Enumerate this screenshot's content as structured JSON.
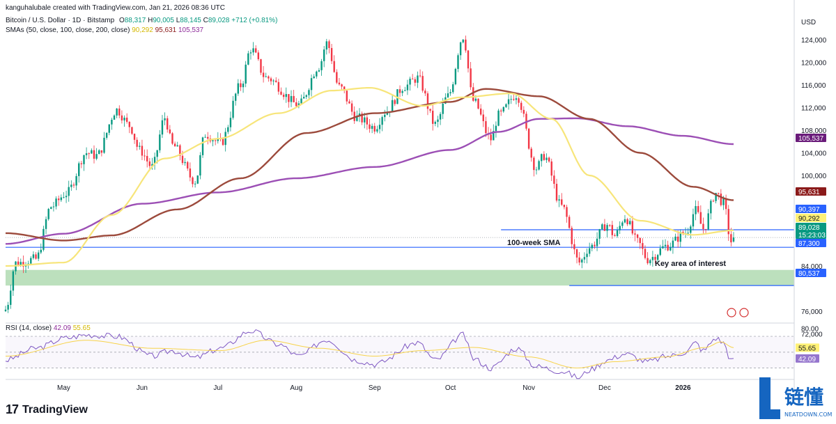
{
  "header": {
    "credit": "kanguhalubale created with TradingView.com, Jan 21, 2026 08:36 UTC",
    "symbol": "Bitcoin / U.S. Dollar · 1D · Bitstamp",
    "ohlc": {
      "o_label": "O",
      "o": "88,317",
      "h_label": "H",
      "h": "90,005",
      "l_label": "L",
      "l": "88,145",
      "c_label": "C",
      "c": "89,028",
      "change": "+712 (+0.81%)"
    },
    "sma_label": "SMAs (50, close, 100, close, 200, close)",
    "sma_values": {
      "sma50": "90,292",
      "sma100": "95,631",
      "sma200": "105,537"
    },
    "rsi_label": "RSI (14, close)",
    "rsi_values": {
      "rsi": "42.09",
      "rsi_ma": "55.65"
    }
  },
  "price_axis": {
    "currency": "USD",
    "ticks": [
      "124,000",
      "120,000",
      "116,000",
      "112,000",
      "108,000",
      "104,000",
      "100,000",
      "84,000",
      "76,000",
      "72,000"
    ]
  },
  "rsi_axis": {
    "ticks": [
      "80.00"
    ]
  },
  "time_axis": {
    "labels": [
      "May",
      "Jun",
      "Jul",
      "Aug",
      "Sep",
      "Oct",
      "Nov",
      "Dec",
      "2026"
    ]
  },
  "price_badges": [
    {
      "value": "105,537",
      "color": "#6a1b7a"
    },
    {
      "value": "95,631",
      "color": "#8b1a1a"
    },
    {
      "value": "90,397",
      "color": "#2962ff"
    },
    {
      "value": "90,292",
      "color": "#fff176"
    },
    {
      "value": "89,028",
      "color": "#089981"
    },
    {
      "value": "15:23:03",
      "color": "#089981"
    },
    {
      "value": "87,300",
      "color": "#2962ff"
    },
    {
      "value": "80,537",
      "color": "#2962ff"
    }
  ],
  "rsi_badges": [
    {
      "value": "55.65",
      "color": "#fff176"
    },
    {
      "value": "42.09",
      "color": "#9575cd"
    }
  ],
  "annotations": {
    "sma100w": "100-week  SMA",
    "key_area": "Key area of interest"
  },
  "branding": {
    "tv_mark": "17",
    "tv_name": "TradingView",
    "wm_cn": "链懂",
    "wm_en": "NEATDOWN.COM"
  },
  "colors": {
    "up": "#089981",
    "down": "#f23645",
    "sma50": "#f7e57a",
    "sma100": "#9c4a3c",
    "sma200": "#9c4fb5",
    "hline": "#2962ff",
    "zone": "#a5d6a7"
  },
  "chart_data": {
    "type": "candlestick",
    "title": "Bitcoin / U.S. Dollar · 1D · Bitstamp",
    "y_unit": "USD",
    "ylim": [
      70000,
      128000
    ],
    "x_range": [
      "2025-04-08",
      "2026-01-21"
    ],
    "last": {
      "open": 88317,
      "high": 90005,
      "low": 88145,
      "close": 89028
    },
    "close_path": [
      [
        "2025-04-08",
        76300
      ],
      [
        "2025-04-12",
        84500
      ],
      [
        "2025-04-20",
        85200
      ],
      [
        "2025-04-26",
        94500
      ],
      [
        "2025-05-02",
        96800
      ],
      [
        "2025-05-10",
        104000
      ],
      [
        "2025-05-14",
        103500
      ],
      [
        "2025-05-22",
        111600
      ],
      [
        "2025-05-27",
        108800
      ],
      [
        "2025-05-31",
        104500
      ],
      [
        "2025-06-05",
        101500
      ],
      [
        "2025-06-10",
        110200
      ],
      [
        "2025-06-13",
        105300
      ],
      [
        "2025-06-22",
        99000
      ],
      [
        "2025-06-26",
        107300
      ],
      [
        "2025-07-02",
        105700
      ],
      [
        "2025-07-10",
        115900
      ],
      [
        "2025-07-14",
        122400
      ],
      [
        "2025-07-20",
        117300
      ],
      [
        "2025-08-02",
        112500
      ],
      [
        "2025-08-10",
        119300
      ],
      [
        "2025-08-13",
        123400
      ],
      [
        "2025-08-18",
        115600
      ],
      [
        "2025-08-25",
        110200
      ],
      [
        "2025-09-01",
        108500
      ],
      [
        "2025-09-05",
        111200
      ],
      [
        "2025-09-13",
        115800
      ],
      [
        "2025-09-18",
        117200
      ],
      [
        "2025-09-25",
        109000
      ],
      [
        "2025-09-30",
        114000
      ],
      [
        "2025-10-06",
        124600
      ],
      [
        "2025-10-10",
        113200
      ],
      [
        "2025-10-17",
        106400
      ],
      [
        "2025-10-20",
        110600
      ],
      [
        "2025-10-27",
        114300
      ],
      [
        "2025-11-04",
        101300
      ],
      [
        "2025-11-07",
        103500
      ],
      [
        "2025-11-14",
        94500
      ],
      [
        "2025-11-21",
        84600
      ],
      [
        "2025-11-25",
        87300
      ],
      [
        "2025-12-02",
        91300
      ],
      [
        "2025-12-05",
        89300
      ],
      [
        "2025-12-09",
        92700
      ],
      [
        "2025-12-14",
        88200
      ],
      [
        "2025-12-18",
        85200
      ],
      [
        "2025-12-26",
        87600
      ],
      [
        "2026-01-02",
        89900
      ],
      [
        "2026-01-06",
        93800
      ],
      [
        "2026-01-09",
        90600
      ],
      [
        "2026-01-14",
        96900
      ],
      [
        "2026-01-17",
        95100
      ],
      [
        "2026-01-20",
        88300
      ],
      [
        "2026-01-21",
        89028
      ]
    ],
    "sma50": [
      [
        "2025-04-08",
        84000
      ],
      [
        "2025-05-01",
        84600
      ],
      [
        "2025-05-20",
        93000
      ],
      [
        "2025-06-10",
        103000
      ],
      [
        "2025-07-01",
        106500
      ],
      [
        "2025-07-25",
        111000
      ],
      [
        "2025-08-15",
        115000
      ],
      [
        "2025-08-30",
        115500
      ],
      [
        "2025-09-20",
        112300
      ],
      [
        "2025-10-05",
        113800
      ],
      [
        "2025-10-25",
        114500
      ],
      [
        "2025-11-10",
        110000
      ],
      [
        "2025-11-25",
        100000
      ],
      [
        "2025-12-15",
        92000
      ],
      [
        "2026-01-05",
        89500
      ],
      [
        "2026-01-21",
        90292
      ]
    ],
    "sma100": [
      [
        "2025-04-08",
        89800
      ],
      [
        "2025-05-01",
        88500
      ],
      [
        "2025-05-20",
        89400
      ],
      [
        "2025-06-15",
        94000
      ],
      [
        "2025-07-10",
        99500
      ],
      [
        "2025-08-05",
        107500
      ],
      [
        "2025-09-01",
        111000
      ],
      [
        "2025-10-01",
        113000
      ],
      [
        "2025-10-15",
        115300
      ],
      [
        "2025-11-05",
        114000
      ],
      [
        "2025-11-25",
        110000
      ],
      [
        "2025-12-15",
        104000
      ],
      [
        "2026-01-05",
        98000
      ],
      [
        "2026-01-21",
        95631
      ]
    ],
    "sma200": [
      [
        "2025-04-08",
        87900
      ],
      [
        "2025-05-01",
        89700
      ],
      [
        "2025-06-01",
        95000
      ],
      [
        "2025-07-01",
        97000
      ],
      [
        "2025-08-01",
        99500
      ],
      [
        "2025-09-01",
        101500
      ],
      [
        "2025-10-01",
        104500
      ],
      [
        "2025-10-20",
        107700
      ],
      [
        "2025-11-05",
        110000
      ],
      [
        "2025-11-20",
        110100
      ],
      [
        "2025-12-10",
        108700
      ],
      [
        "2026-01-01",
        107000
      ],
      [
        "2026-01-21",
        105537
      ]
    ],
    "horizontal_lines": [
      {
        "value": 90397,
        "from": "2025-10-21"
      },
      {
        "value": 87300,
        "from": "2025-04-08"
      },
      {
        "value": 80537,
        "from": "2025-11-17"
      }
    ],
    "zone": {
      "from": 80537,
      "to": 83300
    },
    "rsi": {
      "ylim": [
        20,
        85
      ],
      "ticks": [
        80
      ],
      "levels": [
        70,
        50,
        30
      ],
      "rsi": [
        [
          "2025-04-08",
          40
        ],
        [
          "2025-04-20",
          55
        ],
        [
          "2025-05-02",
          68
        ],
        [
          "2025-05-10",
          72
        ],
        [
          "2025-05-22",
          70
        ],
        [
          "2025-06-05",
          45
        ],
        [
          "2025-06-13",
          52
        ],
        [
          "2025-06-22",
          43
        ],
        [
          "2025-07-02",
          55
        ],
        [
          "2025-07-14",
          77
        ],
        [
          "2025-07-25",
          60
        ],
        [
          "2025-08-02",
          45
        ],
        [
          "2025-08-13",
          66
        ],
        [
          "2025-08-25",
          40
        ],
        [
          "2025-09-01",
          35
        ],
        [
          "2025-09-18",
          62
        ],
        [
          "2025-09-25",
          40
        ],
        [
          "2025-10-06",
          72
        ],
        [
          "2025-10-10",
          42
        ],
        [
          "2025-10-17",
          30
        ],
        [
          "2025-10-27",
          55
        ],
        [
          "2025-11-04",
          32
        ],
        [
          "2025-11-14",
          26
        ],
        [
          "2025-11-21",
          18
        ],
        [
          "2025-11-25",
          28
        ],
        [
          "2025-12-02",
          40
        ],
        [
          "2025-12-09",
          48
        ],
        [
          "2025-12-18",
          38
        ],
        [
          "2025-12-26",
          45
        ],
        [
          "2026-01-02",
          50
        ],
        [
          "2026-01-06",
          62
        ],
        [
          "2026-01-09",
          52
        ],
        [
          "2026-01-14",
          68
        ],
        [
          "2026-01-17",
          62
        ],
        [
          "2026-01-20",
          40
        ],
        [
          "2026-01-21",
          42.09
        ]
      ],
      "rsi_ma": [
        [
          "2025-04-08",
          45
        ],
        [
          "2025-05-10",
          65
        ],
        [
          "2025-06-05",
          55
        ],
        [
          "2025-07-02",
          52
        ],
        [
          "2025-07-20",
          65
        ],
        [
          "2025-08-10",
          55
        ],
        [
          "2025-09-01",
          45
        ],
        [
          "2025-09-20",
          52
        ],
        [
          "2025-10-10",
          56
        ],
        [
          "2025-11-01",
          44
        ],
        [
          "2025-11-20",
          30
        ],
        [
          "2025-12-05",
          38
        ],
        [
          "2025-12-25",
          44
        ],
        [
          "2026-01-10",
          56
        ],
        [
          "2026-01-16",
          63
        ],
        [
          "2026-01-21",
          55.65
        ]
      ]
    }
  }
}
